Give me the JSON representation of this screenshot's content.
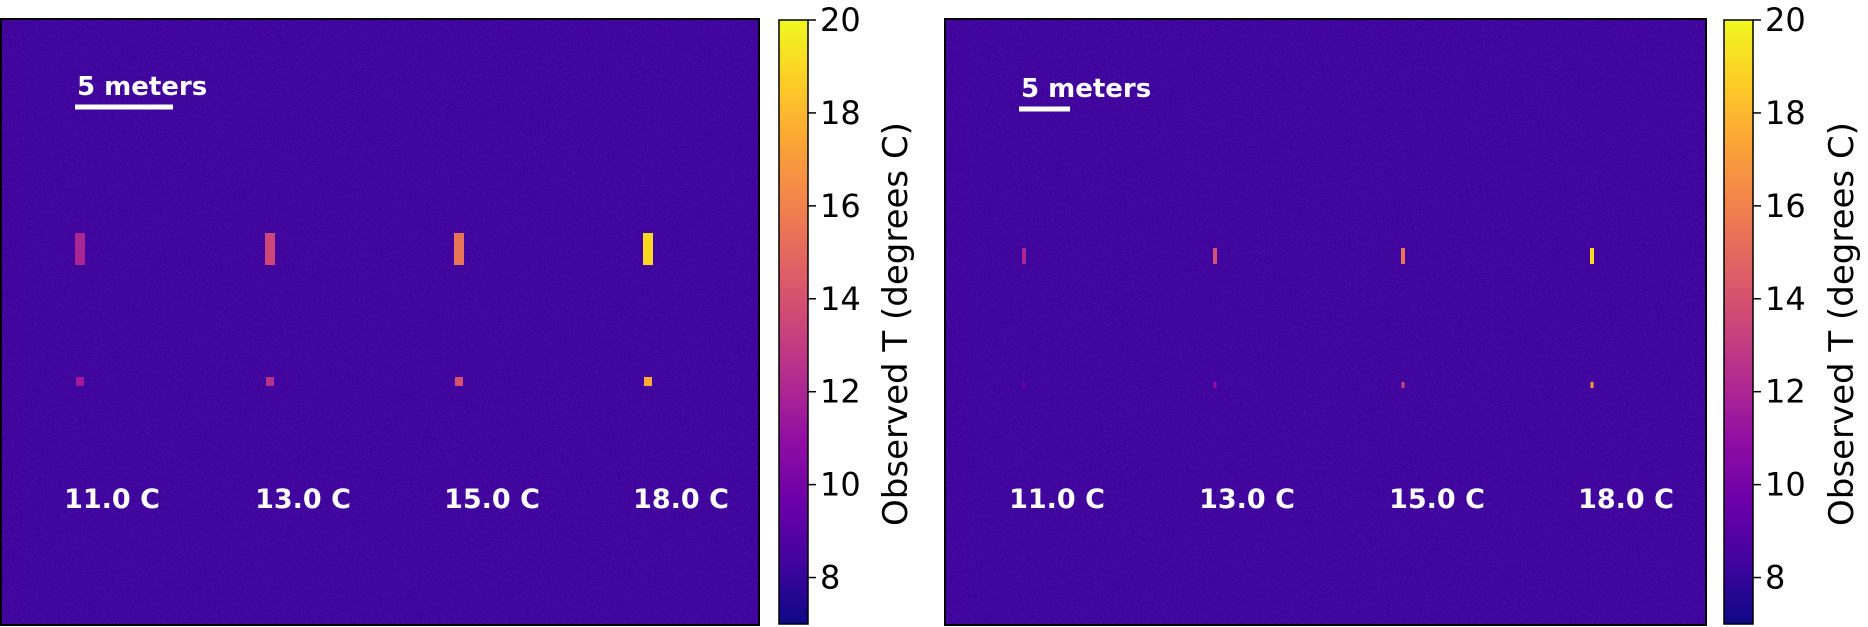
{
  "chart_data": [
    {
      "type": "heatmap",
      "scale_label": "5 meters",
      "targets": [
        {
          "label": "11.0 C",
          "large_value": 12.0,
          "small_value": 11.5
        },
        {
          "label": "13.0 C",
          "large_value": 13.5,
          "small_value": 12.5
        },
        {
          "label": "15.0 C",
          "large_value": 15.5,
          "small_value": 14.0
        },
        {
          "label": "18.0 C",
          "large_value": 19.0,
          "small_value": 17.5
        }
      ],
      "background_value": 8.5,
      "colorbar": {
        "label": "Observed T (degrees C)",
        "range": [
          7,
          20
        ],
        "ticks": [
          "8",
          "10",
          "12",
          "14",
          "16",
          "18",
          "20"
        ],
        "colormap": "plasma"
      }
    },
    {
      "type": "heatmap",
      "scale_label": "5 meters",
      "targets": [
        {
          "label": "11.0 C",
          "large_value": 12.0,
          "small_value": 9.5
        },
        {
          "label": "13.0 C",
          "large_value": 14.0,
          "small_value": 11.0
        },
        {
          "label": "15.0 C",
          "large_value": 15.5,
          "small_value": 13.5
        },
        {
          "label": "18.0 C",
          "large_value": 19.0,
          "small_value": 17.0
        }
      ],
      "background_value": 8.5,
      "colorbar": {
        "label": "Observed T (degrees C)",
        "range": [
          7,
          20
        ],
        "ticks": [
          "8",
          "10",
          "12",
          "14",
          "16",
          "18",
          "20"
        ],
        "colormap": "plasma"
      }
    }
  ],
  "colors": {
    "background": "#3e049c",
    "plasma": [
      "#0d0887",
      "#41049d",
      "#6a00a8",
      "#8f0da4",
      "#b12a90",
      "#cc4778",
      "#e16462",
      "#f2844b",
      "#fca636",
      "#fcce25",
      "#f0f921"
    ]
  }
}
